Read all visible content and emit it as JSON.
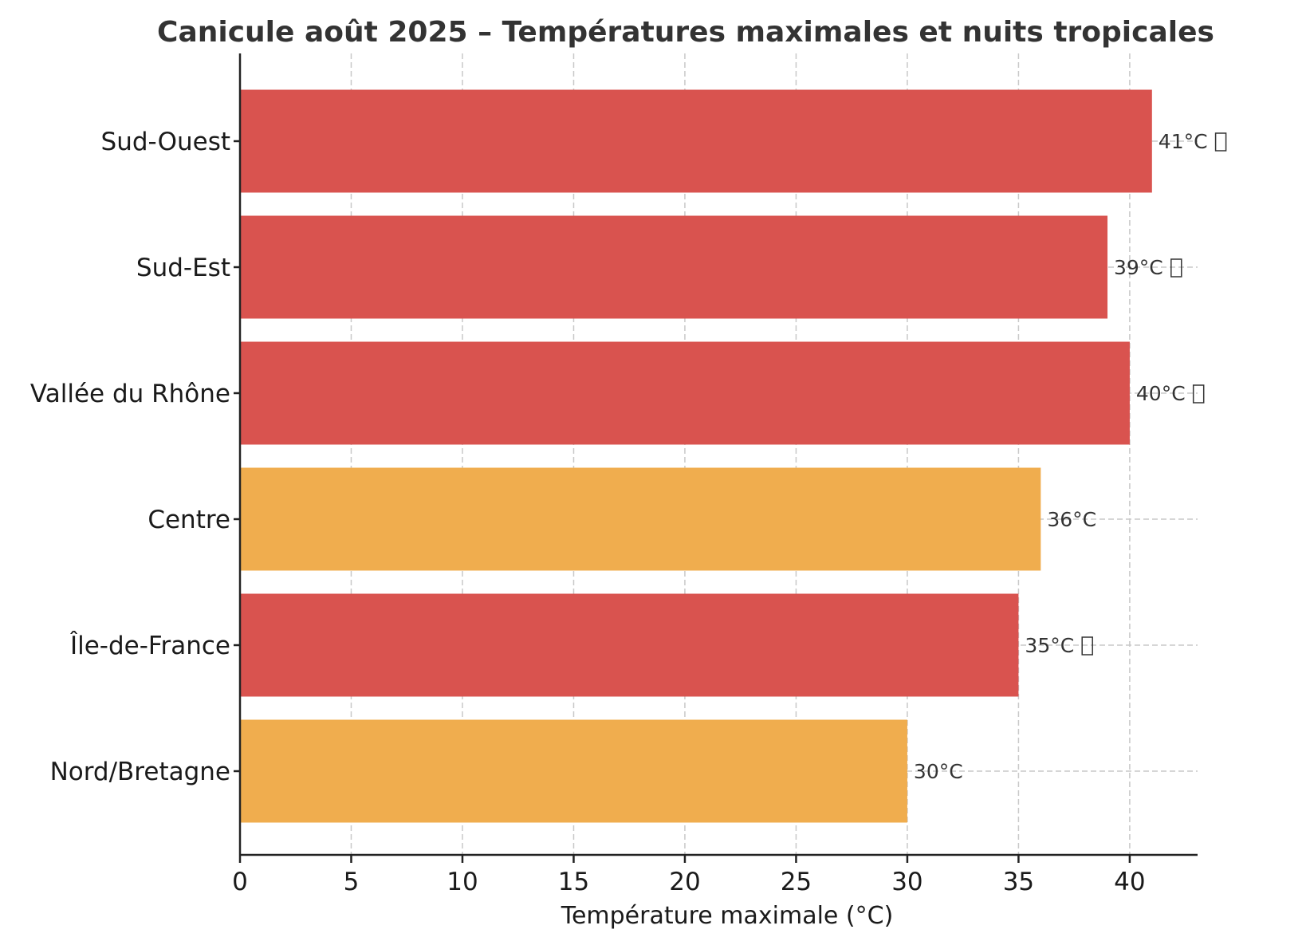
{
  "chart_data": {
    "type": "bar",
    "orientation": "horizontal",
    "title": "Canicule août 2025 – Températures maximales et nuits tropicales",
    "xlabel": "Température maximale (°C)",
    "ylabel": "",
    "xlim": [
      0,
      43.05
    ],
    "xticks": [
      "0",
      "5",
      "10",
      "15",
      "20",
      "25",
      "30",
      "35",
      "40"
    ],
    "grid": true,
    "categories": [
      "Sud-Ouest",
      "Sud-Est",
      "Vallée du Rhône",
      "Centre",
      "Île-de-France",
      "Nord/Bretagne"
    ],
    "values": [
      41,
      39,
      40,
      36,
      35,
      30
    ],
    "value_labels": [
      "41°C",
      "39°C",
      "40°C",
      "36°C",
      "35°C",
      "30°C"
    ],
    "tropical_night": [
      true,
      true,
      true,
      false,
      true,
      false
    ],
    "colors": {
      "tropical_night": "#d9534f",
      "default": "#f0ad4e"
    }
  }
}
